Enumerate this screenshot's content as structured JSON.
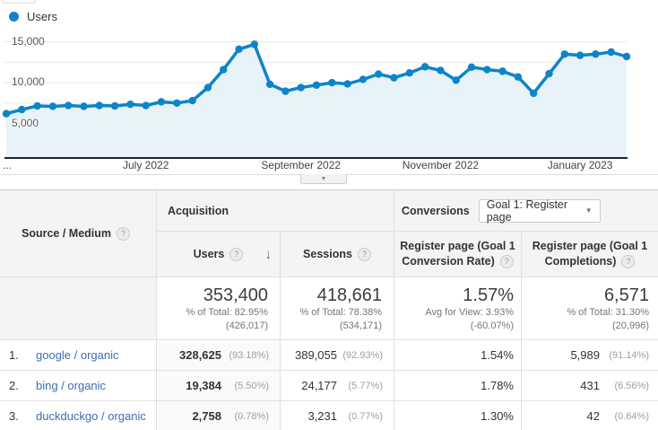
{
  "legend": {
    "label": "Users"
  },
  "chart_data": {
    "type": "line",
    "title": "Users",
    "series": [
      {
        "name": "Users",
        "color": "#0d84c9",
        "values": [
          6200,
          6700,
          7150,
          7100,
          7200,
          7100,
          7200,
          7150,
          7350,
          7200,
          7650,
          7500,
          7800,
          9400,
          11600,
          14100,
          14700,
          9800,
          8950,
          9400,
          9700,
          10000,
          9850,
          10400,
          11050,
          10600,
          11200,
          11950,
          11500,
          10300,
          11900,
          11600,
          11400,
          10700,
          8700,
          11100,
          13500,
          13350,
          13500,
          13750,
          13200
        ]
      }
    ],
    "x_axis": {
      "labels": [
        {
          "index": 0,
          "text": "...",
          "align": "left"
        },
        {
          "index": 9,
          "text": "July 2022"
        },
        {
          "index": 19,
          "text": "September 2022"
        },
        {
          "index": 28,
          "text": "November 2022"
        },
        {
          "index": 37,
          "text": "January 2023"
        }
      ]
    },
    "y_axis": {
      "min": 0,
      "max": 16000,
      "minor_grid_step": 2500,
      "ticks": [
        {
          "value": 5000,
          "label": "5,000"
        },
        {
          "value": 10000,
          "label": "10,000"
        },
        {
          "value": 15000,
          "label": "15,000"
        }
      ]
    },
    "grid": true,
    "legend_position": "top-left",
    "area_fill": true
  },
  "controls": {
    "collapse_chart_icon": "▼"
  },
  "icons": {
    "help": "?",
    "sort_desc": "↓",
    "caret_down": "▼"
  },
  "table": {
    "dimension_header": {
      "label": "Source / Medium"
    },
    "acquisition_group_label": "Acquisition",
    "conversions_group_label": "Conversions",
    "goal_selector": {
      "value": "Goal 1: Register page"
    },
    "columns": {
      "users": {
        "label": "Users",
        "sorted": true
      },
      "sessions": {
        "label": "Sessions"
      },
      "conv_rate": {
        "label_line1": "Register page (Goal 1",
        "label_line2": "Conversion Rate)"
      },
      "completions": {
        "label_line1": "Register page (Goal 1",
        "label_line2": "Completions)"
      }
    },
    "totals": {
      "users": {
        "value": "353,400",
        "sub1": "% of Total: 82.95%",
        "sub2": "(426,017)"
      },
      "sessions": {
        "value": "418,661",
        "sub1": "% of Total: 78.38%",
        "sub2": "(534,171)"
      },
      "conv_rate": {
        "value": "1.57%",
        "sub1": "Avg for View: 3.93%",
        "sub2": "(-60.07%)"
      },
      "completions": {
        "value": "6,571",
        "sub1": "% of Total: 31.30%",
        "sub2": "(20,996)"
      }
    },
    "rows": [
      {
        "rank": "1.",
        "source": "google / organic",
        "users": "328,625",
        "users_pct": "(93.18%)",
        "sessions": "389,055",
        "sessions_pct": "(92.93%)",
        "conv_rate": "1.54%",
        "completions": "5,989",
        "completions_pct": "(91.14%)"
      },
      {
        "rank": "2.",
        "source": "bing / organic",
        "users": "19,384",
        "users_pct": "(5.50%)",
        "sessions": "24,177",
        "sessions_pct": "(5.77%)",
        "conv_rate": "1.78%",
        "completions": "431",
        "completions_pct": "(6.56%)"
      },
      {
        "rank": "3.",
        "source": "duckduckgo / organic",
        "users": "2,758",
        "users_pct": "(0.78%)",
        "sessions": "3,231",
        "sessions_pct": "(0.77%)",
        "conv_rate": "1.30%",
        "completions": "42",
        "completions_pct": "(0.64%)"
      }
    ]
  },
  "colors": {
    "line": "#0d84c9",
    "area_fill": "#e7f2f9",
    "grid": "#e6e6e6",
    "axis": "#222222",
    "header_bg": "#f4f4f4",
    "link": "#3c6eb4"
  }
}
